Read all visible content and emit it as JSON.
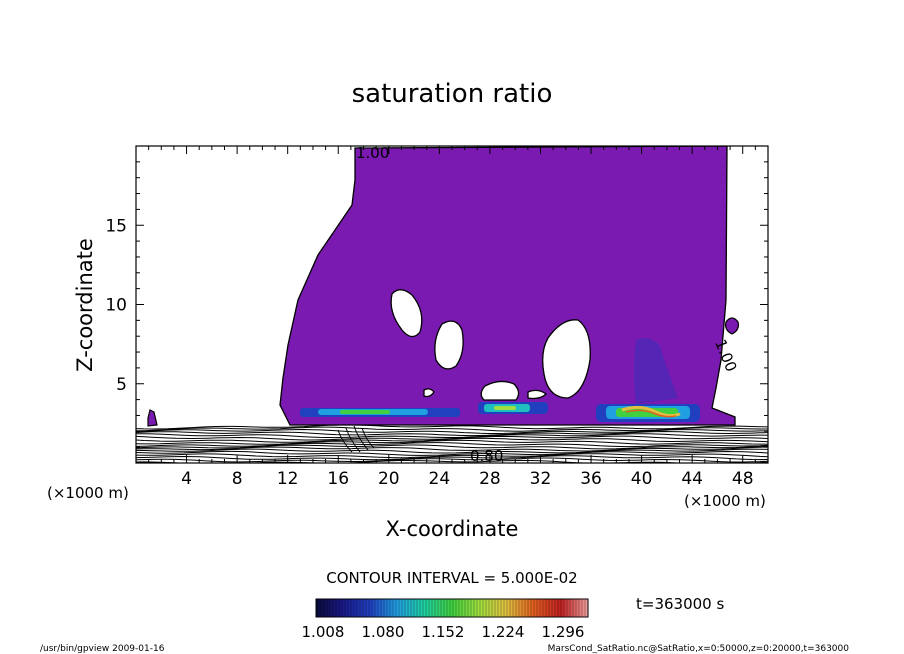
{
  "chart_data": {
    "type": "heatmap",
    "title": "saturation ratio",
    "xlabel": "X-coordinate",
    "ylabel": "Z-coordinate",
    "x_unit_left": "(×1000 m)",
    "x_unit_right": "(×1000 m)",
    "xlim": [
      0,
      50
    ],
    "ylim": [
      0,
      20
    ],
    "x_ticks": [
      4,
      8,
      12,
      16,
      20,
      24,
      28,
      32,
      36,
      40,
      44,
      48
    ],
    "y_ticks": [
      5,
      10,
      15
    ],
    "contour_interval": "CONTOUR INTERVAL = 5.000E-02",
    "contour_labels": [
      "1.00",
      "1.00",
      "0.80"
    ],
    "colorbar": {
      "ticks": [
        "1.008",
        "1.080",
        "1.152",
        "1.224",
        "1.296"
      ],
      "colors": [
        "#0a0a3a",
        "#1a1a8a",
        "#2040c0",
        "#20a0e0",
        "#20d0a0",
        "#40d040",
        "#a0e040",
        "#e0c040",
        "#e06020",
        "#c02020",
        "#f0a0a0"
      ]
    },
    "time_label": "t=363000 s",
    "fill_color": "#7a1ab0"
  },
  "footer": {
    "left": "/usr/bin/gpview  2009-01-16",
    "right": "MarsCond_SatRatio.nc@SatRatio,x=0:50000,z=0:20000,t=363000"
  }
}
